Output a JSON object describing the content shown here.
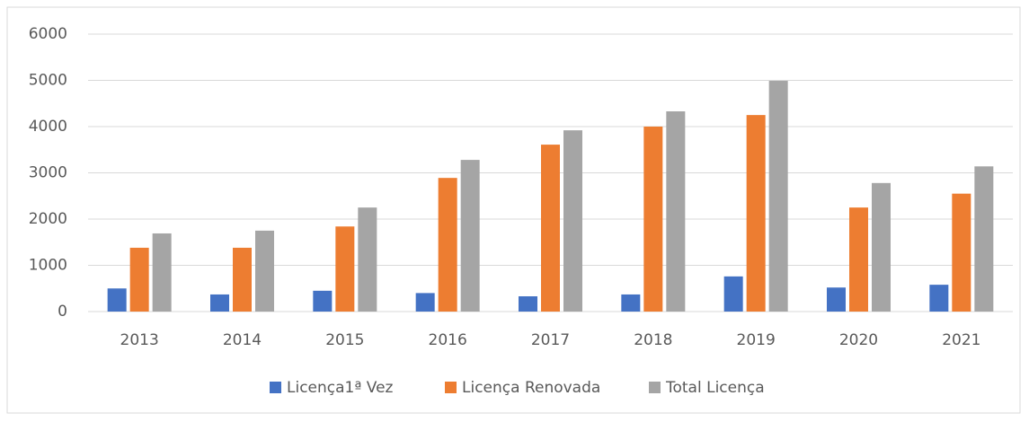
{
  "chart_data": {
    "type": "bar",
    "categories": [
      "2013",
      "2014",
      "2015",
      "2016",
      "2017",
      "2018",
      "2019",
      "2020",
      "2021"
    ],
    "series": [
      {
        "name": "Licença1ª Vez",
        "color": "#4472c4",
        "values": [
          500,
          370,
          450,
          400,
          330,
          370,
          760,
          520,
          580
        ]
      },
      {
        "name": "Licença Renovada",
        "color": "#ed7d31",
        "values": [
          1380,
          1380,
          1840,
          2890,
          3610,
          4000,
          4250,
          2250,
          2550
        ]
      },
      {
        "name": "Total Licença",
        "color": "#a5a5a5",
        "values": [
          1690,
          1750,
          2250,
          3280,
          3920,
          4330,
          4990,
          2780,
          3140
        ]
      }
    ],
    "ylim": [
      0,
      6000
    ],
    "yticks": [
      0,
      1000,
      2000,
      3000,
      4000,
      5000,
      6000
    ],
    "grid": true,
    "legend": "bottom"
  }
}
